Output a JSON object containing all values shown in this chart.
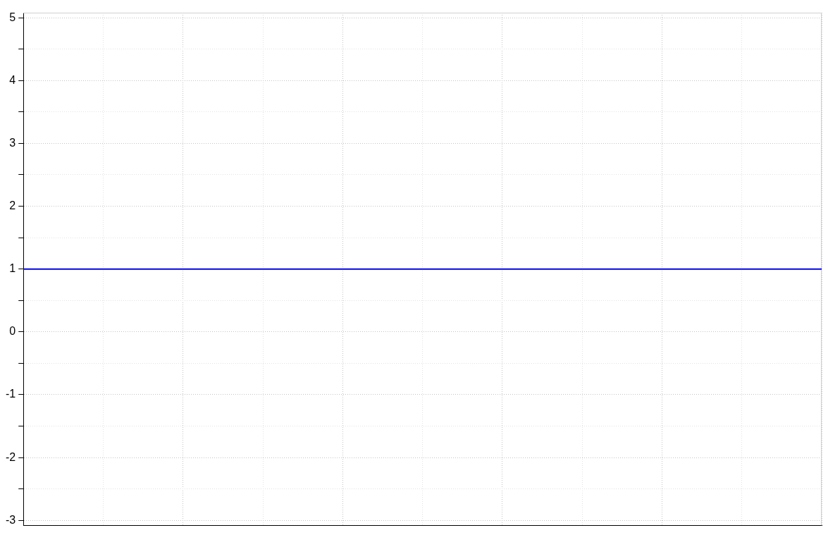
{
  "chart_data": {
    "type": "line",
    "categories": [
      null,
      null,
      null,
      null,
      null,
      null,
      null,
      null,
      null,
      null,
      null
    ],
    "series": [
      {
        "color": "#0000ff",
        "values": [
          1,
          1,
          1,
          1,
          1,
          1,
          1,
          1,
          1,
          1,
          1
        ]
      }
    ],
    "ylim": [
      -3.08,
      5.08
    ],
    "yticks": [
      -3,
      {
        "value": -2.5,
        "label": null
      },
      -2,
      {
        "value": -1.5,
        "label": null
      },
      -1,
      {
        "value": -0.5,
        "label": null
      },
      0,
      {
        "value": 0.5,
        "label": null
      },
      1,
      {
        "value": 1.5,
        "label": null
      },
      2,
      {
        "value": 2.5,
        "label": null
      },
      3,
      {
        "value": 3.5,
        "label": null
      },
      4,
      {
        "value": 4.5,
        "label": null
      },
      5
    ],
    "grid": true,
    "line_style": "solid",
    "tick_labels": "y",
    "legend": false
  }
}
